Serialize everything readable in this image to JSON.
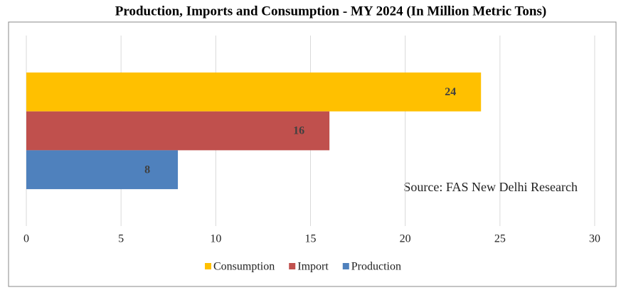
{
  "chart_data": {
    "type": "bar",
    "orientation": "horizontal",
    "title": "Production, Imports and Consumption - MY 2024 (In Million Metric Tons)",
    "annotation": "Source: FAS New Delhi Research",
    "categories": [
      null
    ],
    "series": [
      {
        "name": "Consumption",
        "color": "#ffc000",
        "values": [
          24
        ]
      },
      {
        "name": "Import",
        "color": "#c0504d",
        "values": [
          16
        ]
      },
      {
        "name": "Production",
        "color": "#4f81bd",
        "values": [
          8
        ]
      }
    ],
    "xlim": [
      0,
      30
    ],
    "xticks": [
      0,
      5,
      10,
      15,
      20,
      25,
      30
    ],
    "grid": true,
    "legend": "bottom"
  }
}
